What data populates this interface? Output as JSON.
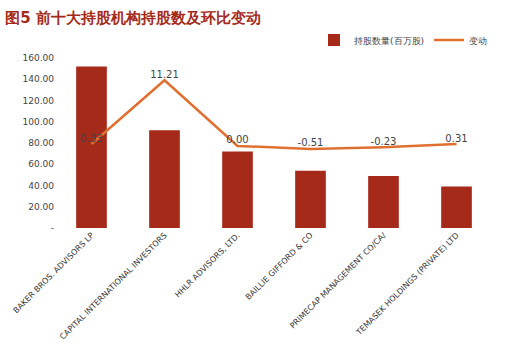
{
  "chart_data": {
    "type": "bar",
    "title": "图5 前十大持股机构持股数及环比变动",
    "categories": [
      "BAKER BROS. ADVISORS LP",
      "CAPITAL INTERNATIONAL INVESTORS",
      "HHLR ADVISORS, LTD.",
      "BAILLIE GIFFORD & CO",
      "PRIMECAP MANAGEMENT CO/CA/",
      "TEMASEK HOLDINGS (PRIVATE) LTD"
    ],
    "series": [
      {
        "name": "持股数量(百万股)",
        "type": "bar",
        "color": "#a52a1a",
        "values": [
          152,
          92,
          72,
          54,
          49,
          39
        ]
      },
      {
        "name": "变动",
        "type": "line",
        "axis": "y2",
        "color": "#e07030",
        "data_labels": true,
        "values": [
          0.33,
          11.21,
          0.0,
          -0.51,
          -0.23,
          0.31
        ],
        "value_labels": [
          "0.33",
          "11.21",
          "0.00",
          "-0.51",
          "-0.23",
          "0.31"
        ]
      }
    ],
    "ylim": [
      0,
      160
    ],
    "yticks": [
      {
        "value": 0,
        "label": "-"
      },
      {
        "value": 20,
        "label": "20.00"
      },
      {
        "value": 40,
        "label": "40.00"
      },
      {
        "value": 60,
        "label": "60.00"
      },
      {
        "value": 80,
        "label": "80.00"
      },
      {
        "value": 100,
        "label": "100.00"
      },
      {
        "value": 120,
        "label": "120.00"
      },
      {
        "value": 140,
        "label": "140.00"
      },
      {
        "value": 160,
        "label": "160.00"
      }
    ],
    "y2lim": [
      -14,
      15
    ],
    "tick_labels": "y",
    "grid": false,
    "legend": "top right"
  }
}
